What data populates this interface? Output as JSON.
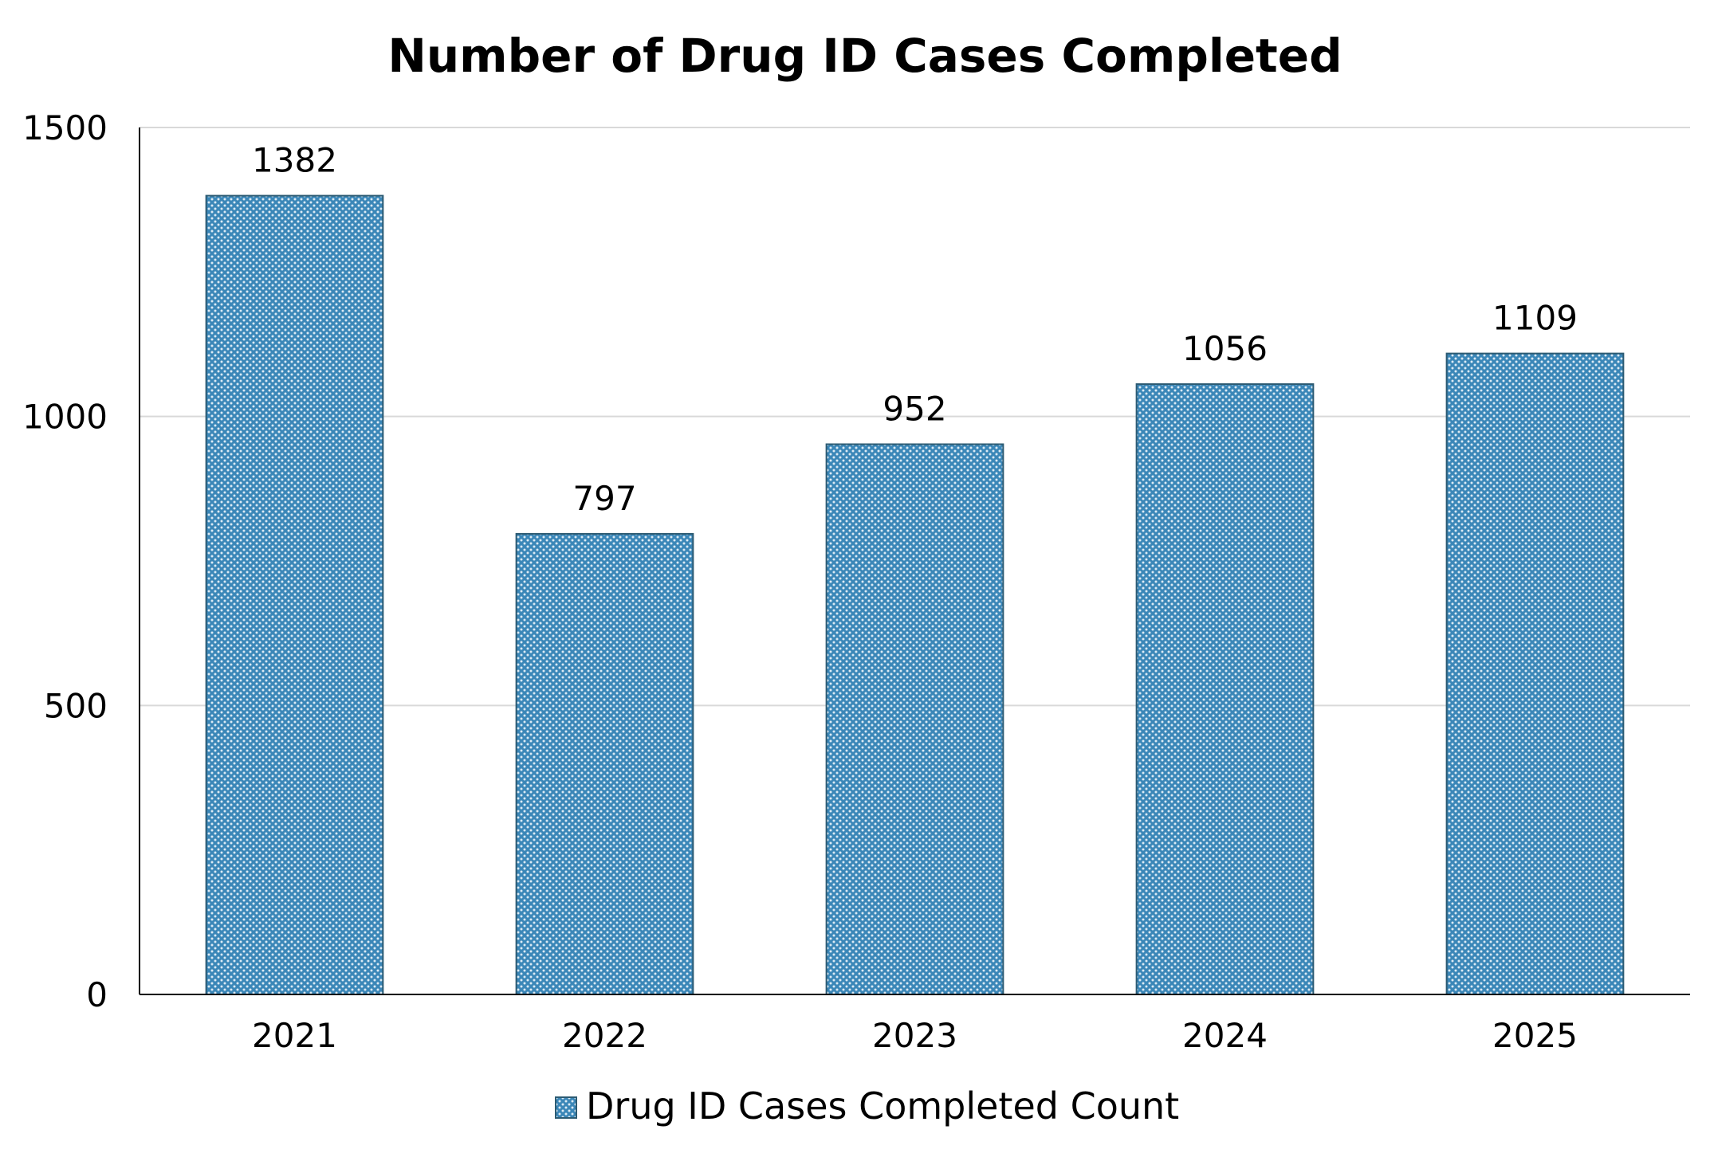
{
  "chart_data": {
    "type": "bar",
    "title": "Number of Drug ID Cases Completed",
    "xlabel": "",
    "ylabel": "",
    "categories": [
      "2021",
      "2022",
      "2023",
      "2024",
      "2025"
    ],
    "series": [
      {
        "name": "Drug ID Cases Completed Count",
        "values": [
          1382,
          797,
          952,
          1056,
          1109
        ],
        "data_labels": [
          "1382",
          "797",
          "952",
          "1056",
          "1109"
        ],
        "color": "#3b87b8"
      }
    ],
    "ylim": [
      0,
      1500
    ],
    "yticks": [
      0,
      500,
      1000,
      1500
    ],
    "ytick_labels": [
      "0",
      "500",
      "1000",
      "1500"
    ],
    "grid": true,
    "legend": "bottom-center"
  },
  "colors": {
    "bar_fill": "#3b87b8",
    "bar_dot": "#dbeaf4",
    "bar_border": "#2c5b73",
    "gridline": "#d9d9d9",
    "axis": "#000000"
  }
}
